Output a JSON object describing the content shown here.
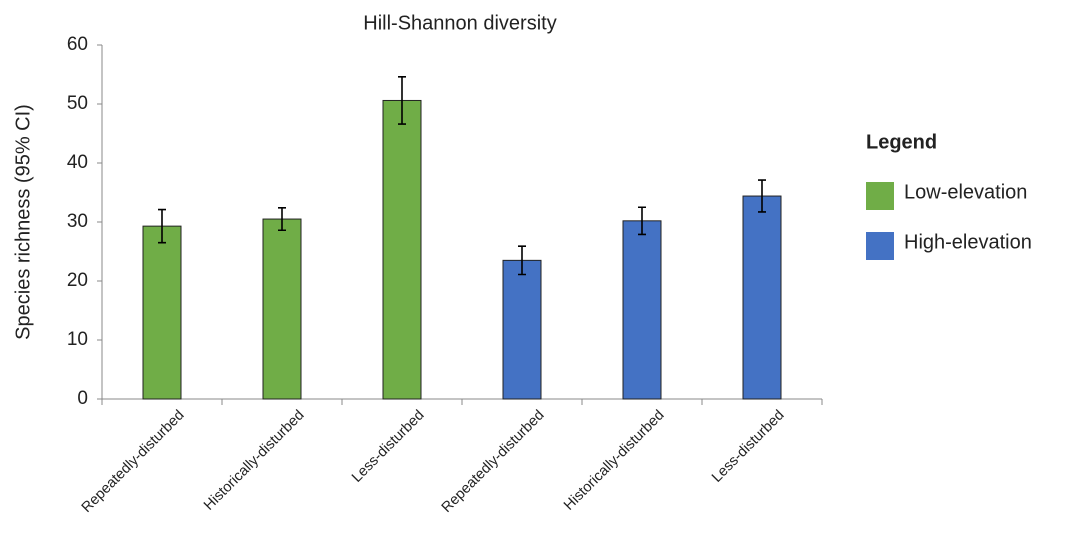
{
  "chart_data": {
    "type": "bar",
    "title": "Hill-Shannon diversity",
    "y_label": "Species richness (95% CI)",
    "categories": [
      "Repeatedly-disturbed",
      "Historically-disturbed",
      "Less-disturbed",
      "Repeatedly-disturbed",
      "Historically-disturbed",
      "Less-disturbed"
    ],
    "series": [
      {
        "name": "Low-elevation",
        "color": "#70ad47",
        "values": [
          29.3,
          30.5,
          50.6,
          null,
          null,
          null
        ],
        "errors": [
          2.8,
          1.9,
          4.0,
          null,
          null,
          null
        ]
      },
      {
        "name": "High-elevation",
        "color": "#4472c4",
        "values": [
          null,
          null,
          null,
          23.5,
          30.2,
          34.4
        ],
        "errors": [
          null,
          null,
          null,
          2.4,
          2.3,
          2.7
        ]
      }
    ],
    "ylim": [
      0,
      60
    ],
    "yticks": [
      0,
      10,
      20,
      30,
      40,
      50,
      60
    ],
    "grid": false,
    "legend_title": "Legend",
    "legend_position": "right"
  }
}
